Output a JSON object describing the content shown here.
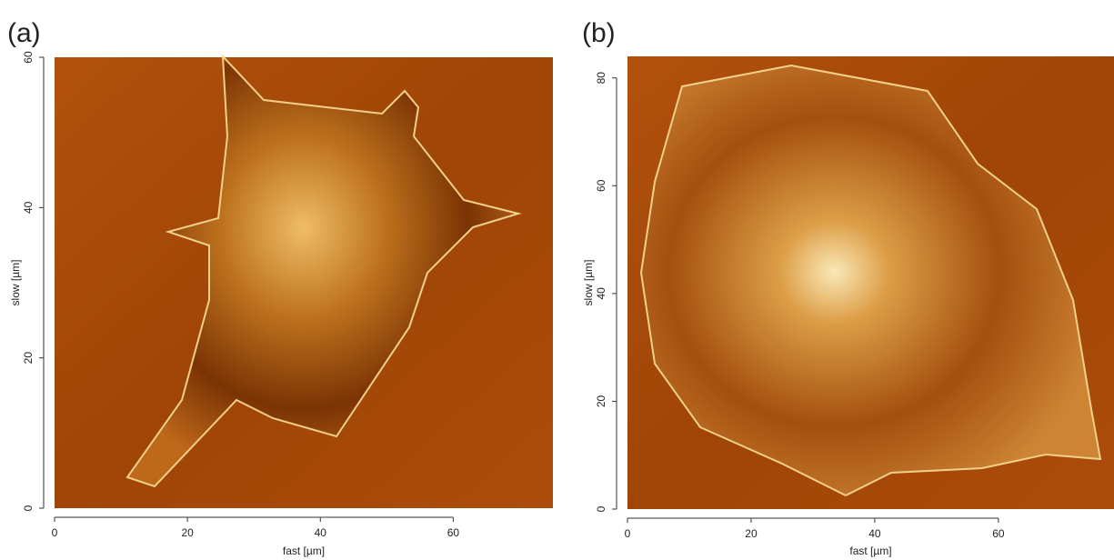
{
  "chart_data": [
    {
      "type": "image",
      "title": "(a)",
      "xlabel": "fast [µm]",
      "ylabel": "slow [µm]",
      "xlim": [
        0,
        75
      ],
      "ylim": [
        0,
        60
      ],
      "xticks": [
        0,
        20,
        40,
        60
      ],
      "yticks": [
        0,
        20,
        40,
        60
      ],
      "color": "#a84a08"
    },
    {
      "type": "image",
      "title": "(b)",
      "xlabel": "fast [µm]",
      "ylabel": "slow [µm]",
      "xlim": [
        0,
        78.7
      ],
      "ylim": [
        0,
        84
      ],
      "xticks": [
        0,
        20,
        40,
        60
      ],
      "yticks": [
        0,
        20,
        40,
        60,
        80
      ],
      "color": "#a84a08"
    }
  ]
}
